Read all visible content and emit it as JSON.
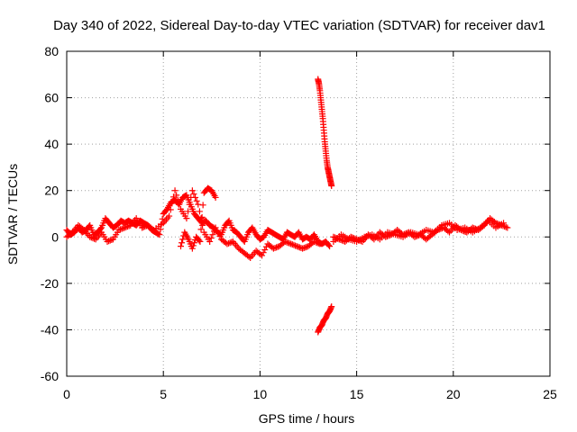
{
  "chart_data": {
    "type": "scatter",
    "title": "Day 340 of 2022, Sidereal Day-to-day VTEC variation (SDTVAR) for receiver dav1",
    "xlabel": "GPS time / hours",
    "ylabel": "SDTVAR / TECUs",
    "xlim": [
      0,
      25
    ],
    "ylim": [
      -60,
      80
    ],
    "xticks": [
      0,
      5,
      10,
      15,
      20,
      25
    ],
    "yticks": [
      -60,
      -40,
      -20,
      0,
      20,
      40,
      60,
      80
    ],
    "grid": true,
    "marker": "plus",
    "series": [
      {
        "name": "SDTVAR",
        "color": "#ff0000",
        "segments": [
          {
            "x": [
              0.0,
              0.2,
              0.4,
              0.6,
              0.8,
              1.0,
              1.2,
              1.4,
              1.6,
              1.8,
              2.0,
              2.2,
              2.4,
              2.6,
              2.8,
              3.0,
              3.2,
              3.4,
              3.6,
              3.8,
              4.0,
              4.2,
              4.4,
              4.6,
              4.8,
              5.0,
              5.2,
              5.4,
              5.6,
              5.8,
              6.0,
              6.2,
              6.4,
              6.6,
              6.8,
              7.0,
              7.2,
              7.4,
              7.6,
              7.8,
              8.0,
              8.2,
              8.4,
              8.6,
              8.8,
              9.0,
              9.2,
              9.4,
              9.6,
              9.8,
              10.0,
              10.2,
              10.4,
              10.6,
              10.8,
              11.0,
              11.2,
              11.4,
              11.6,
              11.8,
              12.0,
              12.2,
              12.4,
              12.6,
              12.8,
              13.0,
              13.2,
              13.4,
              13.6
            ],
            "y": [
              3,
              1,
              2,
              4,
              2,
              3,
              5,
              1,
              2,
              4,
              8,
              6,
              4,
              5,
              7,
              6,
              7,
              6,
              5,
              7,
              6,
              5,
              3,
              2,
              1,
              10,
              12,
              15,
              16,
              14,
              17,
              18,
              14,
              10,
              8,
              6,
              7,
              5,
              4,
              2,
              1,
              5,
              7,
              3,
              2,
              0,
              -2,
              2,
              4,
              1,
              -1,
              0,
              3,
              2,
              1,
              0,
              -1,
              2,
              1,
              0,
              2,
              -1,
              0,
              -1,
              1,
              -2,
              -3,
              -2,
              -4
            ]
          },
          {
            "x": [
              0.0,
              0.3,
              0.6,
              0.9,
              1.2,
              1.5,
              1.8,
              2.1,
              2.4,
              2.7,
              3.0,
              3.3,
              3.6,
              3.9,
              4.2,
              4.5,
              5.0,
              5.3,
              5.6,
              5.9,
              6.2,
              6.5,
              6.8,
              7.1,
              7.4,
              7.7,
              8.0,
              8.3,
              8.6,
              8.9,
              9.2,
              9.5,
              9.8,
              10.1,
              10.4,
              10.7,
              11.0,
              11.3,
              11.6,
              11.9,
              12.2,
              12.5,
              12.8,
              13.1
            ],
            "y": [
              0,
              2,
              5,
              3,
              0,
              -1,
              2,
              -2,
              -1,
              3,
              4,
              5,
              8,
              4,
              5,
              3,
              6,
              9,
              20,
              12,
              8,
              20,
              14,
              2,
              -2,
              4,
              -1,
              -3,
              -2,
              -5,
              -7,
              -9,
              -6,
              -8,
              -3,
              -5,
              -4,
              -2,
              -3,
              -4,
              -5,
              -4,
              -2,
              -3
            ]
          },
          {
            "x": [
              5.9,
              6.1,
              6.3,
              6.5,
              6.7,
              6.9,
              7.1,
              7.3,
              7.5,
              7.7
            ],
            "y": [
              -4,
              2,
              -1,
              -5,
              0,
              -2,
              19,
              21,
              20,
              17
            ]
          },
          {
            "x": [
              13.0,
              13.05,
              13.1,
              13.15,
              13.2,
              13.25,
              13.3,
              13.35,
              13.4,
              13.45,
              13.5,
              13.55,
              13.6,
              13.65,
              13.7
            ],
            "y": [
              68,
              66,
              63,
              59,
              55,
              51,
              46,
              41,
              37,
              33,
              30,
              28,
              26,
              24,
              22
            ]
          },
          {
            "x": [
              13.0,
              13.1,
              13.2,
              13.3,
              13.4,
              13.5,
              13.6,
              13.7
            ],
            "y": [
              -41,
              -39,
              -38,
              -36,
              -35,
              -33,
              -32,
              -30
            ]
          },
          {
            "x": [
              13.8,
              14.1,
              14.4,
              14.7,
              15.0,
              15.3,
              15.6,
              15.9,
              16.2,
              16.5,
              16.8,
              17.1,
              17.4,
              17.7,
              18.0,
              18.3,
              18.6,
              18.9,
              19.2,
              19.5,
              19.8,
              20.1,
              20.4,
              20.7,
              21.0,
              21.3,
              21.6,
              21.9,
              22.2,
              22.5,
              22.8
            ],
            "y": [
              0,
              -1,
              -2,
              0,
              -1,
              -2,
              1,
              -1,
              2,
              0,
              1,
              3,
              1,
              2,
              0,
              1,
              -1,
              1,
              3,
              4,
              2,
              5,
              3,
              2,
              4,
              3,
              5,
              8,
              6,
              5,
              4
            ]
          },
          {
            "x": [
              13.8,
              14.2,
              14.6,
              15.0,
              15.4,
              15.8,
              16.2,
              16.6,
              17.0,
              17.4,
              17.8,
              18.2,
              18.6,
              19.0,
              19.4,
              19.8,
              20.2,
              20.6,
              21.0,
              21.4,
              21.8,
              22.2,
              22.6
            ],
            "y": [
              -2,
              1,
              -1,
              -2,
              0,
              1,
              -1,
              2,
              1,
              0,
              2,
              1,
              3,
              2,
              5,
              6,
              3,
              4,
              2,
              4,
              7,
              4,
              6
            ]
          }
        ]
      }
    ]
  }
}
